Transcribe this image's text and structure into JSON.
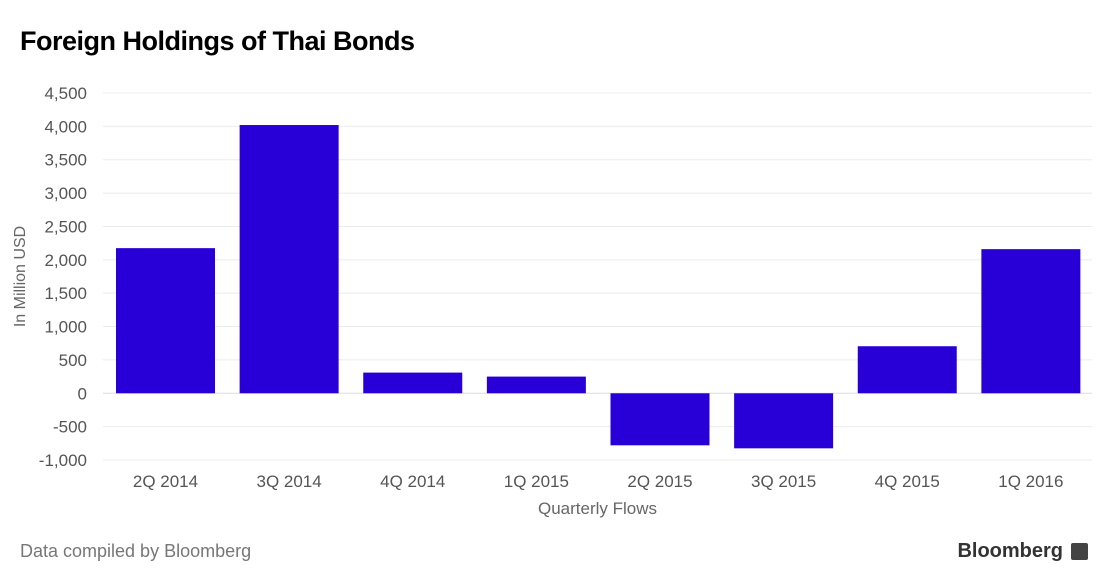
{
  "title": "Foreign Holdings of Thai Bonds",
  "source": "Data compiled by Bloomberg",
  "brand": "Bloomberg",
  "chart_data": {
    "type": "bar",
    "title": "Foreign Holdings of Thai Bonds",
    "xlabel": "Quarterly Flows",
    "ylabel": "In Million USD",
    "categories": [
      "2Q 2014",
      "3Q 2014",
      "4Q 2014",
      "1Q 2015",
      "2Q 2015",
      "3Q 2015",
      "4Q 2015",
      "1Q 2016"
    ],
    "values": [
      2175,
      4020,
      310,
      250,
      -780,
      -825,
      705,
      2160
    ],
    "ylim": [
      -1000,
      4500
    ],
    "yticks": [
      -1000,
      -500,
      0,
      500,
      1000,
      1500,
      2000,
      2500,
      3000,
      3500,
      4000,
      4500
    ],
    "ytick_labels": [
      "-1,000",
      "-500",
      "0",
      "500",
      "1,000",
      "1,500",
      "2,000",
      "2,500",
      "3,000",
      "3,500",
      "4,000",
      "4,500"
    ],
    "grid": true,
    "bar_color": "#2800d7"
  }
}
